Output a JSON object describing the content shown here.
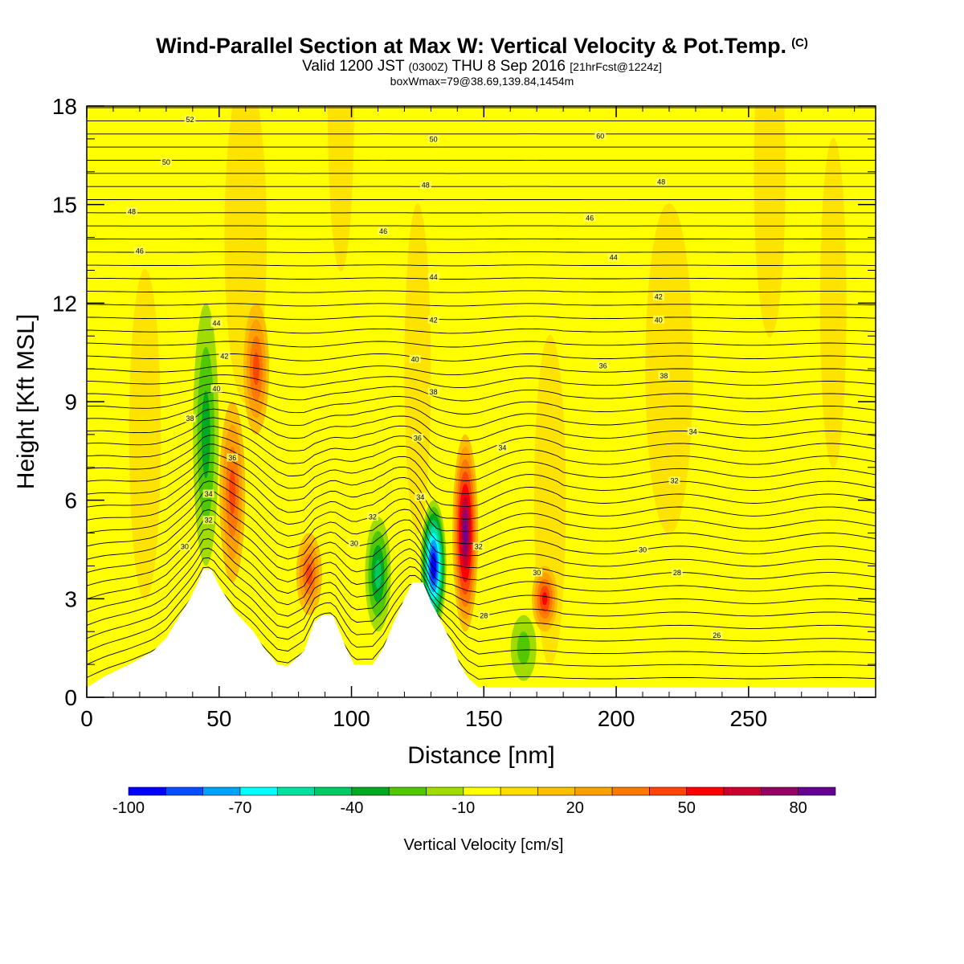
{
  "header": {
    "title": "Wind-Parallel Section at Max W: Vertical Velocity & Pot.Temp.",
    "copyright_mark": "(C)",
    "valid_prefix": "Valid 1200 JST",
    "valid_zulu": "(0300Z)",
    "valid_date": "THU 8 Sep 2016",
    "forecast_info": "[21hrFcst@1224z]",
    "box_info": "boxWmax=79@38.69,139.84,1454m"
  },
  "colorbar": {
    "label": "Vertical Velocity [cm/s]",
    "tick_labels": [
      "-100",
      "-70",
      "-40",
      "-10",
      "20",
      "50",
      "80"
    ],
    "colors": [
      "#0000ff",
      "#0050ff",
      "#00a0ff",
      "#00ffff",
      "#00e0a0",
      "#00c864",
      "#00aa20",
      "#50c800",
      "#a0dc00",
      "#ffff00",
      "#ffdc00",
      "#ffbe00",
      "#ffa000",
      "#ff7800",
      "#ff4600",
      "#ff0000",
      "#c80032",
      "#960064",
      "#640096"
    ]
  },
  "chart_data": {
    "type": "heatmap",
    "xlabel": "Distance [nm]",
    "ylabel": "Height [Kft MSL]",
    "xlim": [
      0,
      298
    ],
    "ylim": [
      0,
      18
    ],
    "x_ticks": [
      "0",
      "50",
      "100",
      "150",
      "200",
      "250"
    ],
    "y_ticks": [
      "0",
      "3",
      "6",
      "9",
      "12",
      "15",
      "18"
    ],
    "variable_fill": "Vertical Velocity [cm/s]",
    "variable_contours": "Pot.Temp.",
    "terrain_kft": [
      [
        0,
        0.3
      ],
      [
        7,
        0.65
      ],
      [
        16,
        1.0
      ],
      [
        25,
        1.4
      ],
      [
        30,
        1.8
      ],
      [
        33,
        2.2
      ],
      [
        36,
        2.6
      ],
      [
        39,
        3.0
      ],
      [
        42,
        3.5
      ],
      [
        44,
        3.9
      ],
      [
        47,
        3.9
      ],
      [
        50,
        3.4
      ],
      [
        53,
        3.0
      ],
      [
        56,
        2.6
      ],
      [
        63,
        2.0
      ],
      [
        67,
        1.5
      ],
      [
        72,
        1.0
      ],
      [
        76,
        0.95
      ],
      [
        82,
        1.4
      ],
      [
        86,
        2.3
      ],
      [
        89,
        2.5
      ],
      [
        93,
        2.5
      ],
      [
        95,
        2.1
      ],
      [
        98,
        1.5
      ],
      [
        101,
        1.0
      ],
      [
        108,
        1.0
      ],
      [
        112,
        1.5
      ],
      [
        116,
        2.3
      ],
      [
        120,
        3.0
      ],
      [
        123,
        3.5
      ],
      [
        127,
        3.5
      ],
      [
        130,
        2.9
      ],
      [
        134,
        2.3
      ],
      [
        138,
        1.6
      ],
      [
        141,
        1.0
      ],
      [
        144,
        0.6
      ],
      [
        148,
        0.3
      ],
      [
        298,
        0.3
      ]
    ],
    "updrafts": [
      {
        "x": 55,
        "z_bottom": 3.5,
        "z_top": 9,
        "w": 40
      },
      {
        "x": 64,
        "z_bottom": 8,
        "z_top": 12,
        "w": 35
      },
      {
        "x": 84,
        "z_bottom": 2.5,
        "z_top": 5,
        "w": 35
      },
      {
        "x": 143,
        "z_bottom": 2,
        "z_top": 8,
        "w": 79
      },
      {
        "x": 173,
        "z_bottom": 2,
        "z_top": 4,
        "w": 45
      }
    ],
    "downdrafts": [
      {
        "x": 45,
        "z_bottom": 4,
        "z_top": 12,
        "w": -25
      },
      {
        "x": 110,
        "z_bottom": 2,
        "z_top": 5.5,
        "w": -40
      },
      {
        "x": 131,
        "z_bottom": 2,
        "z_top": 6,
        "w": -100
      },
      {
        "x": 165,
        "z_bottom": 0.5,
        "z_top": 2.5,
        "w": -20
      }
    ],
    "contour_labels": [
      {
        "text": "52",
        "x": 39,
        "z": 17.6
      },
      {
        "text": "50",
        "x": 30,
        "z": 16.3
      },
      {
        "text": "48",
        "x": 17,
        "z": 14.8
      },
      {
        "text": "46",
        "x": 20,
        "z": 13.6
      },
      {
        "text": "44",
        "x": 49,
        "z": 11.4
      },
      {
        "text": "42",
        "x": 52,
        "z": 10.4
      },
      {
        "text": "40",
        "x": 49,
        "z": 9.4
      },
      {
        "text": "38",
        "x": 39,
        "z": 8.5
      },
      {
        "text": "36",
        "x": 55,
        "z": 7.3
      },
      {
        "text": "34",
        "x": 46,
        "z": 6.2
      },
      {
        "text": "32",
        "x": 46,
        "z": 5.4
      },
      {
        "text": "30",
        "x": 37,
        "z": 4.6
      },
      {
        "text": "50",
        "x": 131,
        "z": 17.0
      },
      {
        "text": "48",
        "x": 128,
        "z": 15.6
      },
      {
        "text": "46",
        "x": 112,
        "z": 14.2
      },
      {
        "text": "44",
        "x": 131,
        "z": 12.8
      },
      {
        "text": "42",
        "x": 131,
        "z": 11.5
      },
      {
        "text": "40",
        "x": 124,
        "z": 10.3
      },
      {
        "text": "38",
        "x": 131,
        "z": 9.3
      },
      {
        "text": "36",
        "x": 125,
        "z": 7.9
      },
      {
        "text": "34",
        "x": 126,
        "z": 6.1
      },
      {
        "text": "32",
        "x": 108,
        "z": 5.5
      },
      {
        "text": "30",
        "x": 101,
        "z": 4.7
      },
      {
        "text": "34",
        "x": 157,
        "z": 7.6
      },
      {
        "text": "32",
        "x": 148,
        "z": 4.6
      },
      {
        "text": "28",
        "x": 150,
        "z": 2.5
      },
      {
        "text": "30",
        "x": 170,
        "z": 3.8
      },
      {
        "text": "60",
        "x": 194,
        "z": 17.1
      },
      {
        "text": "48",
        "x": 217,
        "z": 15.7
      },
      {
        "text": "46",
        "x": 190,
        "z": 14.6
      },
      {
        "text": "44",
        "x": 199,
        "z": 13.4
      },
      {
        "text": "42",
        "x": 216,
        "z": 12.2
      },
      {
        "text": "40",
        "x": 216,
        "z": 11.5
      },
      {
        "text": "36",
        "x": 195,
        "z": 10.1
      },
      {
        "text": "38",
        "x": 218,
        "z": 9.8
      },
      {
        "text": "34",
        "x": 229,
        "z": 8.1
      },
      {
        "text": "32",
        "x": 222,
        "z": 6.6
      },
      {
        "text": "30",
        "x": 210,
        "z": 4.5
      },
      {
        "text": "28",
        "x": 223,
        "z": 3.8
      },
      {
        "text": "26",
        "x": 238,
        "z": 1.9
      }
    ]
  }
}
